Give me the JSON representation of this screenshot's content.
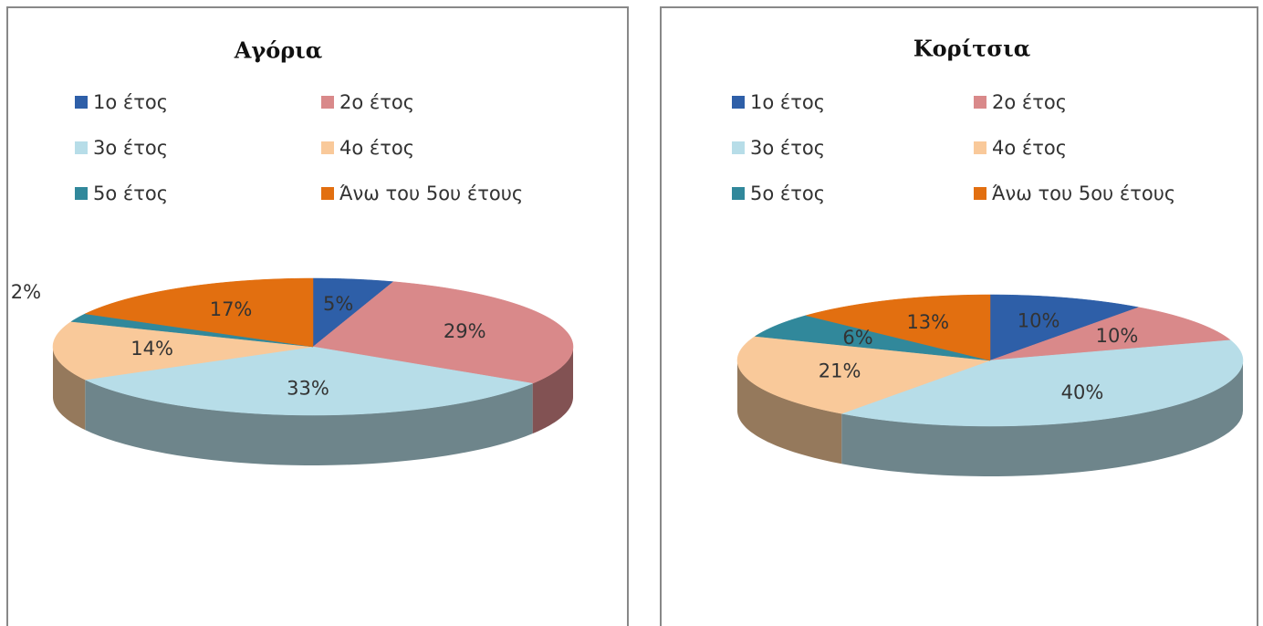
{
  "chart_data": [
    {
      "type": "pie",
      "title": "Αγόρια",
      "categories": [
        "1ο έτος",
        "2ο έτος",
        "3ο έτος",
        "4ο έτος",
        "5ο έτος",
        "Άνω του 5ου έτους"
      ],
      "values": [
        5,
        29,
        33,
        14,
        2,
        17
      ],
      "value_labels": [
        "5%",
        "29%",
        "33%",
        "14%",
        "2%",
        "17%"
      ],
      "colors": [
        "#2e5fa8",
        "#d9898a",
        "#b7dde8",
        "#f9c99a",
        "#31889b",
        "#e26f10"
      ]
    },
    {
      "type": "pie",
      "title": "Κορίτσια",
      "categories": [
        "1ο έτος",
        "2ο έτος",
        "3ο έτος",
        "4ο έτος",
        "5ο έτος",
        "Άνω του 5ου έτους"
      ],
      "values": [
        10,
        10,
        40,
        21,
        6,
        13
      ],
      "value_labels": [
        "10%",
        "10%",
        "40%",
        "21%",
        "6%",
        "13%"
      ],
      "colors": [
        "#2e5fa8",
        "#d9898a",
        "#b7dde8",
        "#f9c99a",
        "#31889b",
        "#e26f10"
      ]
    }
  ]
}
